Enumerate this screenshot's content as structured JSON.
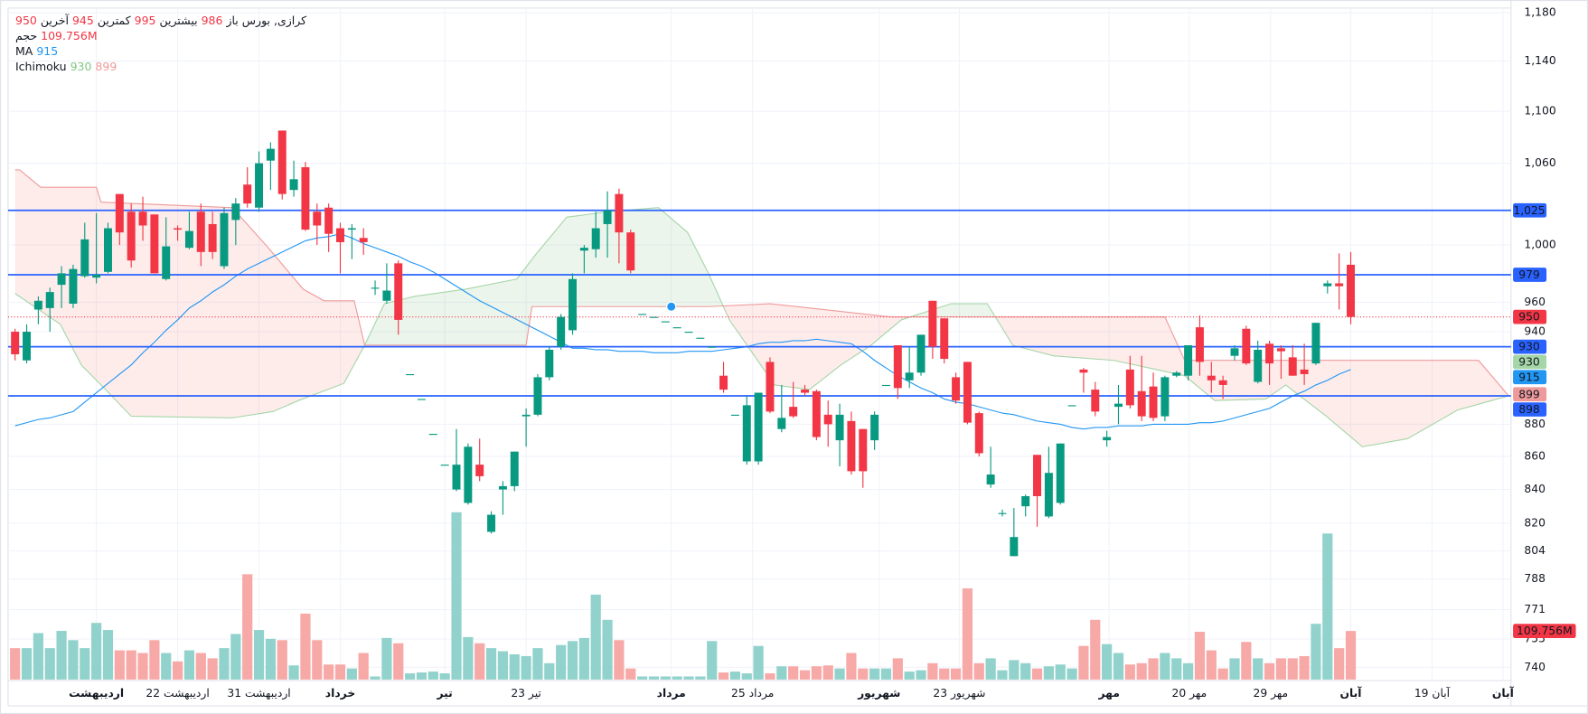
{
  "chart_data": {
    "type": "candlestick",
    "symbol": "کرازی, بورس",
    "ohlc_names": [
      "باز",
      "بیشترین",
      "کمترین",
      "آخرین"
    ],
    "open": [
      940,
      921,
      955,
      956,
      972,
      959,
      978,
      977,
      981,
      1037,
      1024,
      1024,
      1022,
      976,
      1012,
      998,
      1024,
      1015,
      985,
      1018,
      1044,
      1027,
      1062,
      1085,
      1040,
      1057,
      1024,
      1027,
      1012,
      1011,
      1005,
      970,
      961,
      987,
      912,
      896,
      874,
      855,
      840,
      832,
      855,
      815,
      840,
      842,
      885,
      886,
      910,
      930,
      941,
      996,
      997,
      1015,
      1037,
      1009,
      952,
      950,
      947,
      943,
      940,
      936,
      930,
      911,
      886,
      857,
      857,
      920,
      877,
      891,
      902,
      901,
      886,
      870,
      882,
      877,
      870,
      905,
      931,
      908,
      913,
      961,
      949,
      910,
      920,
      887,
      843,
      826,
      801,
      830,
      861,
      824,
      832,
      892,
      915,
      902,
      870,
      891,
      915,
      901,
      904,
      885,
      911,
      911,
      943,
      911,
      908,
      924,
      942,
      907,
      932,
      929,
      923,
      915,
      919,
      971,
      973,
      986
    ],
    "high": [
      942,
      945,
      964,
      970,
      985,
      986,
      1016,
      1023,
      1016,
      1037,
      1030,
      1035,
      1022,
      1020,
      1014,
      1024,
      1030,
      1024,
      1027,
      1034,
      1057,
      1069,
      1076,
      1085,
      1062,
      1061,
      1030,
      1030,
      1016,
      1015,
      1012,
      975,
      987,
      989,
      912,
      896,
      874,
      855,
      877,
      868,
      871,
      827,
      845,
      863,
      890,
      912,
      930,
      952,
      980,
      1000,
      1024,
      1039,
      1041,
      1011,
      952,
      950,
      947,
      943,
      940,
      936,
      930,
      920,
      886,
      898,
      900,
      923,
      905,
      907,
      905,
      902,
      895,
      893,
      888,
      877,
      888,
      905,
      931,
      930,
      938,
      961,
      949,
      913,
      920,
      888,
      866,
      828,
      829,
      837,
      861,
      866,
      868,
      892,
      916,
      907,
      876,
      905,
      924,
      924,
      913,
      911,
      914,
      931,
      951,
      920,
      911,
      931,
      944,
      934,
      934,
      931,
      931,
      932,
      946,
      975,
      994,
      995
    ],
    "low": [
      921,
      919,
      945,
      940,
      956,
      956,
      977,
      973,
      980,
      1000,
      984,
      1003,
      980,
      975,
      1003,
      997,
      985,
      990,
      983,
      1000,
      1027,
      1024,
      1040,
      1033,
      1035,
      1010,
      1000,
      995,
      980,
      990,
      993,
      965,
      959,
      938,
      912,
      896,
      874,
      855,
      839,
      831,
      845,
      814,
      825,
      839,
      866,
      885,
      908,
      928,
      938,
      980,
      991,
      991,
      987,
      980,
      952,
      950,
      947,
      943,
      940,
      936,
      930,
      900,
      886,
      855,
      855,
      887,
      875,
      884,
      898,
      870,
      866,
      854,
      849,
      841,
      864,
      905,
      896,
      903,
      911,
      922,
      919,
      893,
      880,
      860,
      841,
      824,
      801,
      824,
      818,
      823,
      831,
      892,
      900,
      885,
      866,
      880,
      890,
      882,
      882,
      882,
      910,
      908,
      911,
      900,
      896,
      921,
      918,
      906,
      905,
      909,
      911,
      905,
      918,
      966,
      955,
      945
    ],
    "close": [
      925,
      940,
      961,
      967,
      980,
      983,
      1004,
      979,
      1012,
      1009,
      989,
      1014,
      980,
      999,
      1011,
      1010,
      995,
      995,
      1023,
      1030,
      1030,
      1060,
      1071,
      1037,
      1048,
      1011,
      1014,
      1008,
      1002,
      1012,
      1002,
      970,
      968,
      948,
      912,
      896,
      874,
      855,
      855,
      866,
      848,
      825,
      842,
      863,
      886,
      910,
      928,
      950,
      976,
      998,
      1012,
      1025,
      1009,
      982,
      952,
      950,
      947,
      943,
      940,
      936,
      930,
      902,
      886,
      892,
      900,
      888,
      884,
      885,
      900,
      872,
      880,
      886,
      851,
      851,
      886,
      905,
      903,
      913,
      938,
      930,
      922,
      895,
      881,
      862,
      849,
      826,
      812,
      836,
      836,
      850,
      868,
      892,
      913,
      888,
      872,
      893,
      892,
      885,
      884,
      910,
      913,
      931,
      920,
      908,
      905,
      929,
      919,
      928,
      919,
      927,
      911,
      912,
      946,
      973,
      971,
      950
    ],
    "up_color": "#089981",
    "down_color": "#f23645",
    "volume": {
      "name": "حجم",
      "last_label": "109.756M",
      "up_color": "#92d2cc",
      "down_color": "#f7a9a7",
      "values": [
        71,
        71,
        105,
        71,
        110,
        89,
        71,
        128,
        112,
        66,
        66,
        60,
        89,
        60,
        41,
        66,
        60,
        48,
        71,
        103,
        238,
        112,
        92,
        89,
        32,
        149,
        89,
        34,
        34,
        25,
        60,
        7,
        94,
        82,
        14,
        16,
        18,
        14,
        378,
        96,
        82,
        71,
        64,
        57,
        53,
        71,
        37,
        78,
        87,
        94,
        192,
        135,
        89,
        25,
        7,
        7,
        7,
        7,
        7,
        7,
        87,
        16,
        18,
        14,
        76,
        14,
        30,
        30,
        21,
        30,
        32,
        25,
        60,
        25,
        25,
        25,
        48,
        18,
        21,
        37,
        25,
        25,
        206,
        37,
        48,
        21,
        44,
        37,
        25,
        30,
        34,
        25,
        76,
        135,
        80,
        60,
        34,
        37,
        48,
        60,
        48,
        37,
        108,
        66,
        25,
        48,
        85,
        48,
        37,
        48,
        48,
        53,
        126,
        330,
        71,
        109.756
      ]
    },
    "ma": {
      "name": "MA",
      "color": "#2196f3",
      "values": [
        879,
        881,
        883,
        884,
        886,
        888,
        894,
        900,
        906,
        912,
        918,
        926,
        933,
        941,
        948,
        956,
        961,
        967,
        972,
        978,
        983,
        987,
        991,
        995,
        999,
        1003,
        1005,
        1006,
        1008,
        1005,
        1001,
        998,
        995,
        992,
        988,
        985,
        981,
        976,
        971,
        966,
        961,
        957,
        953,
        949,
        945,
        941,
        937,
        933,
        929,
        929,
        928,
        928,
        927,
        927,
        927,
        926,
        926,
        926,
        927,
        927,
        927,
        928,
        929,
        930,
        932,
        933,
        933,
        934,
        934,
        935,
        934,
        933,
        932,
        927,
        921,
        916,
        911,
        907,
        903,
        900,
        896,
        894,
        893,
        891,
        889,
        887,
        886,
        884,
        882,
        881,
        880,
        878,
        877,
        878,
        878,
        879,
        879,
        879,
        880,
        880,
        880,
        880,
        881,
        881,
        882,
        884,
        886,
        888,
        890,
        894,
        898,
        901,
        905,
        908,
        912,
        915
      ]
    },
    "ichimoku": {
      "name": "Ichimoku",
      "values": [
        930,
        899
      ],
      "label_colors": [
        "#a5d6a7",
        "#ef9a9a"
      ],
      "span_a": {
        "color": "#a5d6a7",
        "x": [
          0,
          1.3,
          3.9,
          5.7,
          7.8,
          10,
          18.7,
          22.2,
          24.4,
          28.3,
          30.1,
          31.8,
          34.4,
          38.8,
          43.2,
          44.9,
          47.5,
          51,
          55.4,
          57.9,
          59.7,
          61.5,
          65.4,
          68.4,
          71.1,
          73.7,
          76.3,
          80.6,
          83.7,
          85.9,
          89.4,
          94.6,
          100.7,
          103.3,
          107.7,
          109.4,
          112.9,
          116,
          119.9,
          124.2,
          128.6
        ],
        "values": [
          966,
          959,
          945,
          918,
          902,
          885,
          884,
          888,
          895,
          906,
          931,
          959,
          964,
          969,
          976,
          994,
          1020,
          1024,
          1027,
          1009,
          980,
          948,
          905,
          902,
          918,
          931,
          948,
          959,
          959,
          931,
          924,
          921,
          911,
          895,
          896,
          905,
          885,
          866,
          871,
          889,
          898
        ]
      },
      "span_b": {
        "color": "#ef9a9a",
        "x": [
          0,
          0.4,
          2.2,
          7,
          7.4,
          18.7,
          21.8,
          24.8,
          26.6,
          29.2,
          30.1,
          44,
          44.5,
          59.7,
          65,
          75.4,
          99,
          100.7,
          126,
          128.6
        ],
        "values": [
          1055,
          1055,
          1042,
          1042,
          1031,
          1027,
          998,
          969,
          961,
          961,
          931,
          931,
          957,
          957,
          959,
          950,
          950,
          921,
          921,
          898
        ]
      }
    },
    "levels": {
      "color": "#2962ff",
      "values": [
        {
          "value": 1025,
          "label": "1,025"
        },
        979,
        930,
        898
      ]
    },
    "marker": {
      "x": 56.5,
      "y": 957,
      "color": "#2196f3"
    },
    "xlim": [
      -0.6,
      128.8
    ],
    "xticks": [
      {
        "value": 7,
        "label": "اردیبهشت"
      },
      {
        "value": 14,
        "label": "22 اردیبهشت"
      },
      {
        "value": 21,
        "label": "31 اردیبهشت"
      },
      {
        "value": 28,
        "label": "خرداد"
      },
      {
        "value": 37,
        "label": "تیر"
      },
      {
        "value": 44,
        "label": "23 تیر"
      },
      {
        "value": 56.5,
        "label": "مرداد"
      },
      {
        "value": 63.5,
        "label": "25 مرداد"
      },
      {
        "value": 74.4,
        "label": "شهریور"
      },
      {
        "value": 81.3,
        "label": "23 شهریور"
      },
      {
        "value": 94.2,
        "label": "مهر"
      },
      {
        "value": 101.1,
        "label": "20 مهر"
      },
      {
        "value": 108.1,
        "label": "29 مهر"
      },
      {
        "value": 115,
        "label": "آبان"
      },
      {
        "value": 122,
        "label": "19 آبان"
      },
      {
        "value": 128.1,
        "label": "آبان"
      }
    ],
    "ylim": [
      733,
      1184
    ],
    "log_scale": true,
    "yticks": [
      740,
      755,
      771,
      788,
      804,
      820,
      840,
      860,
      880,
      940,
      960,
      {
        "value": 1000,
        "label": "1,000"
      },
      {
        "value": 1060,
        "label": "1,060"
      },
      {
        "value": 1100,
        "label": "1,100"
      },
      {
        "value": 1140,
        "label": "1,140"
      },
      {
        "value": 1180,
        "label": "1,180"
      }
    ],
    "grid": true
  }
}
